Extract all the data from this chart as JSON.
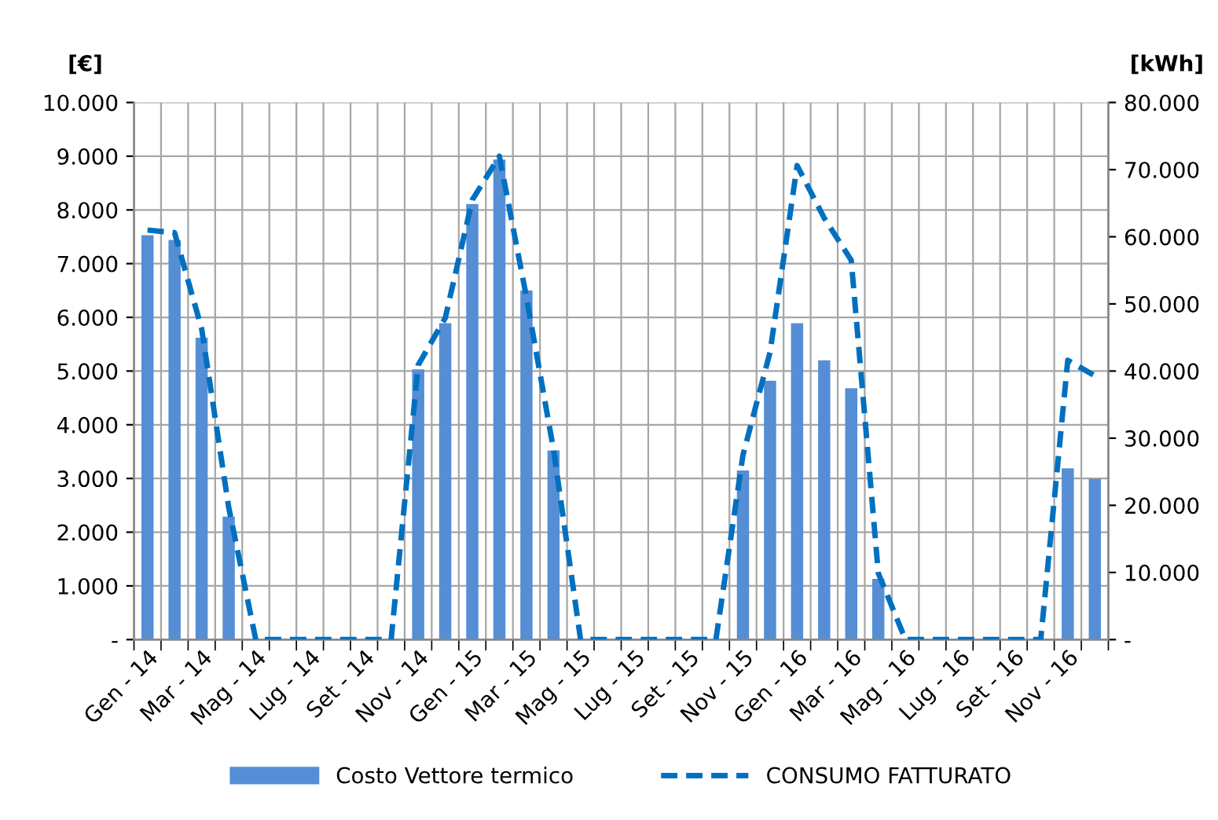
{
  "chart_data": {
    "type": "bar",
    "ylabel": "[€]",
    "y2label": "[kWh]",
    "categories": [
      "Gen - 14",
      null,
      "Mar - 14",
      null,
      "Mag - 14",
      null,
      "Lug - 14",
      null,
      "Set - 14",
      null,
      "Nov - 14",
      null,
      "Gen - 15",
      null,
      "Mar - 15",
      null,
      "Mag - 15",
      null,
      "Lug - 15",
      null,
      "Set - 15",
      null,
      "Nov - 15",
      null,
      "Gen - 16",
      null,
      "Mar - 16",
      null,
      "Mag - 16",
      null,
      "Lug - 16",
      null,
      "Set - 16",
      null,
      "Nov - 16",
      null
    ],
    "series": [
      {
        "name": "Costo Vettore termico",
        "color": "#558ed5",
        "values": [
          7530,
          7440,
          5620,
          2290,
          0,
          0,
          0,
          0,
          0,
          0,
          5030,
          5890,
          8110,
          8940,
          6500,
          3520,
          0,
          0,
          0,
          0,
          0,
          0,
          3150,
          4820,
          5890,
          5200,
          4680,
          1130,
          0,
          0,
          0,
          0,
          0,
          0,
          3190,
          2990
        ]
      },
      {
        "name": "CONSUMO FATTURATO",
        "type": "line",
        "axis": "y2",
        "color": "#0070c0",
        "line_style": "dashed",
        "marker": "none",
        "values": [
          61000,
          60600,
          46300,
          19700,
          0,
          0,
          0,
          0,
          0,
          0,
          40900,
          47900,
          65500,
          72000,
          51000,
          28300,
          0,
          0,
          0,
          0,
          0,
          0,
          27500,
          42800,
          70600,
          62800,
          56500,
          9900,
          0,
          0,
          0,
          0,
          0,
          0,
          41600,
          39300
        ]
      }
    ],
    "ylim": [
      0,
      10000
    ],
    "yticks": [
      {
        "value": 0,
        "label": "-"
      },
      {
        "value": 1000,
        "label": "1.000"
      },
      {
        "value": 2000,
        "label": "2.000"
      },
      {
        "value": 3000,
        "label": "3.000"
      },
      {
        "value": 4000,
        "label": "4.000"
      },
      {
        "value": 5000,
        "label": "5.000"
      },
      {
        "value": 6000,
        "label": "6.000"
      },
      {
        "value": 7000,
        "label": "7.000"
      },
      {
        "value": 8000,
        "label": "8.000"
      },
      {
        "value": 9000,
        "label": "9.000"
      },
      {
        "value": 10000,
        "label": "10.000"
      }
    ],
    "y2lim": [
      0,
      80000
    ],
    "y2ticks": [
      {
        "value": 0,
        "label": "-"
      },
      {
        "value": 10000,
        "label": "10.000"
      },
      {
        "value": 20000,
        "label": "20.000"
      },
      {
        "value": 30000,
        "label": "30.000"
      },
      {
        "value": 40000,
        "label": "40.000"
      },
      {
        "value": 50000,
        "label": "50.000"
      },
      {
        "value": 60000,
        "label": "60.000"
      },
      {
        "value": 70000,
        "label": "70.000"
      },
      {
        "value": 80000,
        "label": "80.000"
      }
    ],
    "grid": true,
    "legend": "bottom"
  }
}
